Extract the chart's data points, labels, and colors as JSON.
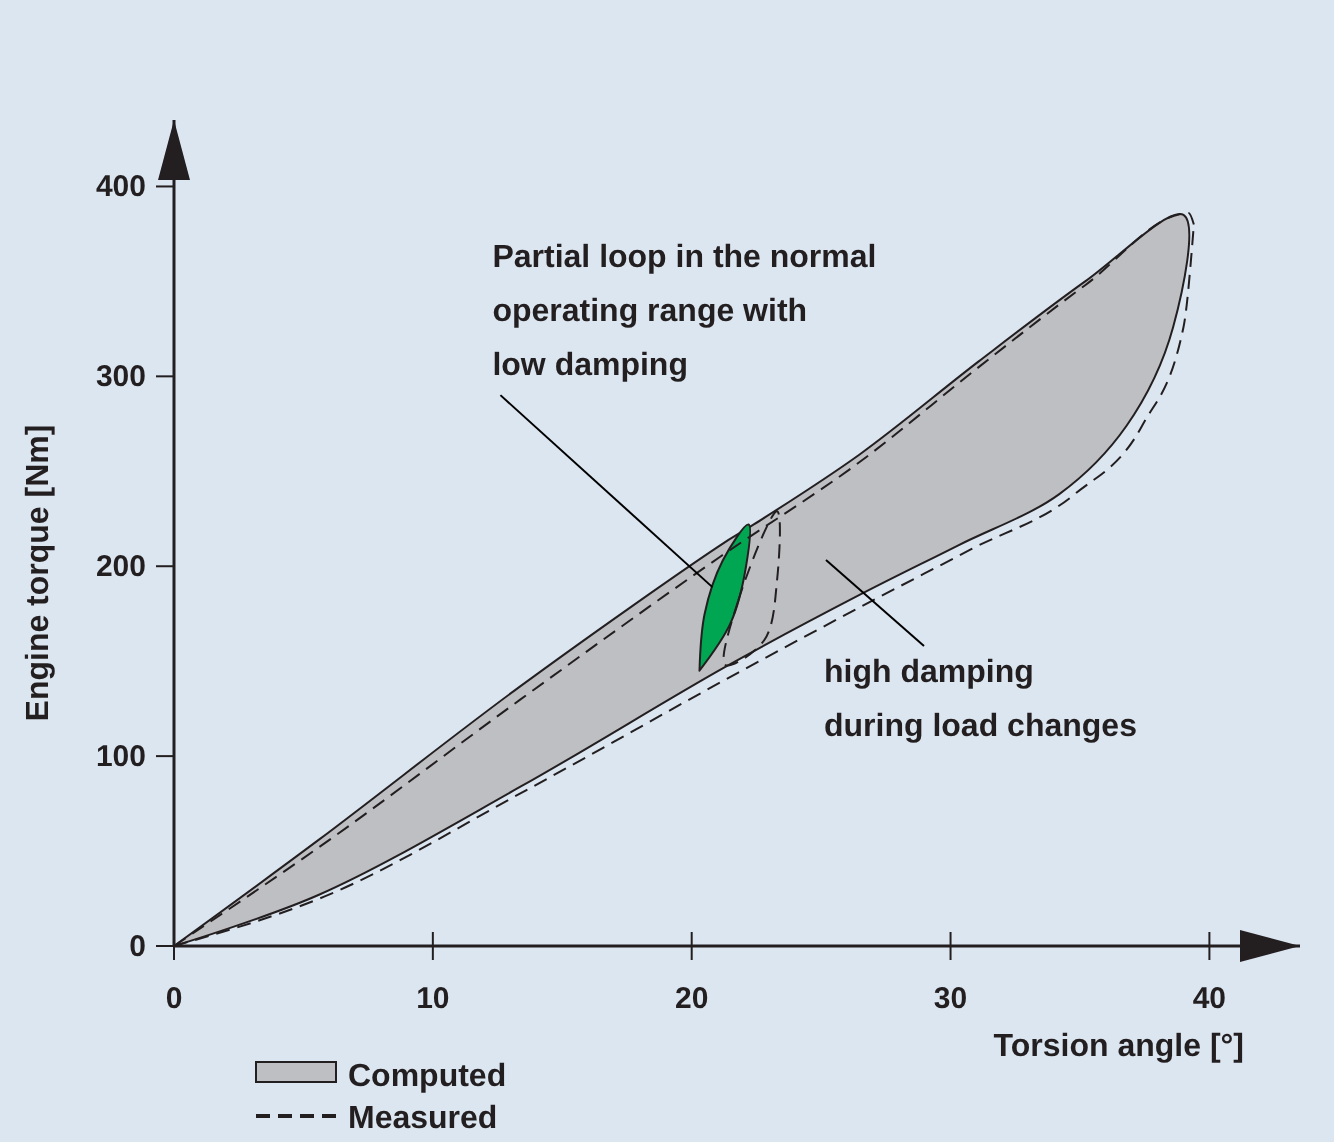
{
  "chart_data": {
    "type": "line",
    "xlabel": "Torsion angle [°]",
    "ylabel": "Engine torque [Nm]",
    "xlim": [
      0,
      43.5
    ],
    "ylim": [
      0,
      435
    ],
    "xticks": [
      0,
      10,
      20,
      30,
      40
    ],
    "yticks": [
      0,
      100,
      200,
      300,
      400
    ],
    "legend": "bottom left",
    "series": [
      {
        "name": "Computed",
        "type": "area",
        "color": "#bebfc3",
        "line_style": "solid",
        "x": [
          0,
          5.6,
          13.4,
          21.1,
          22.4,
          26.5,
          31.1,
          35.2,
          39,
          38.6,
          36.8,
          34.2,
          30.3,
          26.5,
          21.3,
          13.4,
          5.6,
          0
        ],
        "values": [
          0,
          56,
          137,
          211,
          222,
          259,
          308,
          350,
          385,
          326,
          274,
          238,
          211,
          185,
          147,
          84,
          27,
          0
        ]
      },
      {
        "type": "area",
        "color": "#00a651",
        "line_style": "solid",
        "x": [
          20.3,
          20.5,
          21.2,
          22.2,
          22.1,
          21.5,
          20.3
        ],
        "values": [
          145,
          175,
          203,
          222,
          200,
          170,
          145
        ]
      },
      {
        "name": "Measured",
        "color": "#231f20",
        "line_style": "dashed",
        "x": [
          0,
          5.6,
          13.4,
          21.1,
          26.5,
          31.1,
          35.2,
          39.2,
          39.4
        ],
        "values": [
          0,
          52,
          130,
          205,
          255,
          305,
          348,
          386,
          380
        ]
      },
      {
        "color": "#231f20",
        "line_style": "dashed",
        "x": [
          0,
          5.8,
          13.6,
          21.8,
          27,
          30.8,
          34.8,
          37.4,
          39,
          39.4
        ],
        "values": [
          0,
          26,
          82,
          144,
          182,
          209,
          238,
          274,
          326,
          380
        ]
      }
    ],
    "annotations": [
      {
        "text": "Partial loop in the normal\noperating range with\nlow damping",
        "x": 20.8,
        "y": 189
      },
      "high damping\nduring load changes"
    ]
  }
}
